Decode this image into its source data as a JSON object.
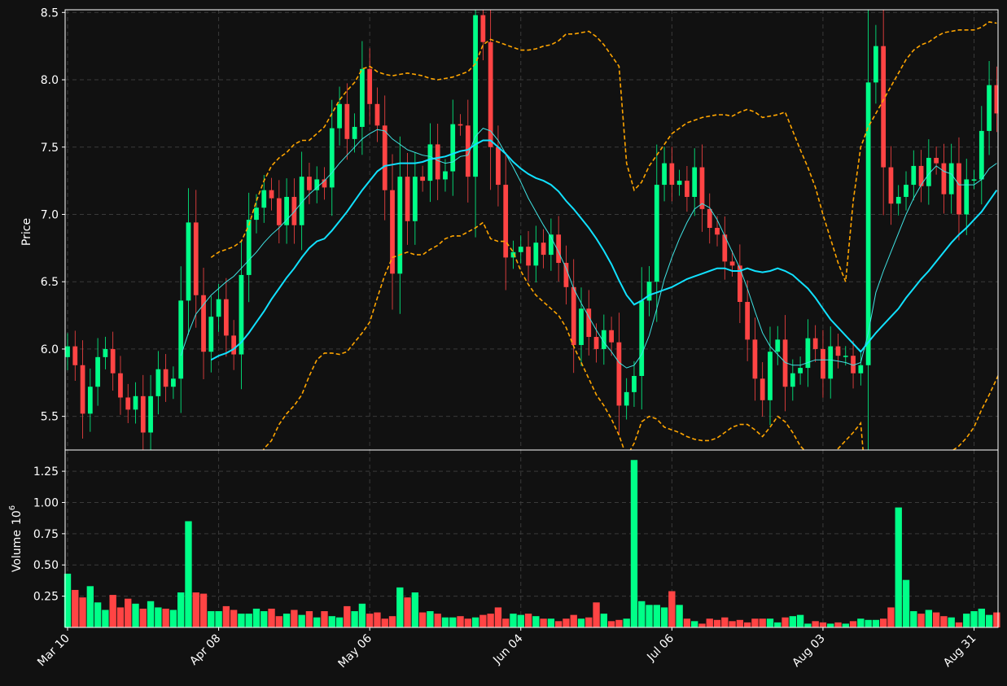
{
  "chart_data": {
    "type": "candlestick",
    "price_panel": {
      "ylabel": "Price",
      "ylim": [
        5.25,
        8.52
      ],
      "yticks": [
        "5.5",
        "6.0",
        "6.5",
        "7.0",
        "7.5",
        "8.0",
        "8.5"
      ],
      "grid": true
    },
    "volume_panel": {
      "ylabel": "Volume",
      "ylabel_exponent": "10",
      "ylabel_exponent_power": "6",
      "ylim": [
        0,
        1.42
      ],
      "yticks": [
        "0.25",
        "0.50",
        "0.75",
        "1.00",
        "1.25"
      ],
      "unit": "millions"
    },
    "x_tick_labels": [
      "Mar 10",
      "Apr 08",
      "May 06",
      "Jun 04",
      "Jul 06",
      "Aug 03",
      "Aug 31"
    ],
    "x_tick_indices": [
      0,
      20,
      40,
      60,
      80,
      100,
      120
    ],
    "colors": {
      "up": "#00ff88",
      "down": "#ff4444",
      "ma_short": "#3fe3e3",
      "ma_long": "#11e1ff",
      "bands": "#ffa500",
      "background": "#111111",
      "grid": "#3a3a3a"
    },
    "series": [
      {
        "name": "",
        "kind": "close",
        "values": [
          6.02,
          5.88,
          5.52,
          5.72,
          5.94,
          6.0,
          5.82,
          5.64,
          5.55,
          5.65,
          5.38,
          5.65,
          5.85,
          5.72,
          5.78,
          6.36,
          6.94,
          6.4,
          5.98,
          6.24,
          6.37,
          6.1,
          5.96,
          6.55,
          6.96,
          7.05,
          7.18,
          7.12,
          6.92,
          7.13,
          6.92,
          7.28,
          7.18,
          7.26,
          7.2,
          7.64,
          7.82,
          7.56,
          7.65,
          8.08,
          7.82,
          7.66,
          7.18,
          6.56,
          7.28,
          6.95,
          7.28,
          7.25,
          7.52,
          7.26,
          7.32,
          7.67,
          7.66,
          7.28,
          8.48,
          8.28,
          7.5,
          7.22,
          6.68,
          6.72,
          6.76,
          6.62,
          6.79,
          6.7,
          6.85,
          6.64,
          6.46,
          6.03,
          6.3,
          6.09,
          6.0,
          6.14,
          6.05,
          5.58,
          5.68,
          5.8,
          6.36,
          6.5,
          7.22,
          7.38,
          7.22,
          7.25,
          7.13,
          7.35,
          7.04,
          6.9,
          6.85,
          6.65,
          6.62,
          6.35,
          6.07,
          5.78,
          5.62,
          5.98,
          6.07,
          5.72,
          5.82,
          5.86,
          6.08,
          6.0,
          5.78,
          6.02,
          5.95,
          5.95,
          5.82,
          5.88,
          7.98,
          8.25,
          7.35,
          7.08,
          7.13,
          7.22,
          7.36,
          7.21,
          7.42,
          7.38,
          7.15,
          7.38,
          7.0,
          7.26,
          7.26,
          7.62,
          7.96,
          7.75
        ]
      },
      {
        "name": "",
        "kind": "ma_short",
        "values": [
          null,
          null,
          null,
          null,
          null,
          null,
          null,
          null,
          null,
          null,
          null,
          null,
          null,
          null,
          null,
          5.95,
          6.12,
          6.26,
          6.33,
          6.4,
          6.45,
          6.5,
          6.54,
          6.6,
          6.66,
          6.72,
          6.79,
          6.85,
          6.9,
          6.96,
          7.02,
          7.09,
          7.15,
          7.2,
          7.25,
          7.31,
          7.38,
          7.44,
          7.5,
          7.56,
          7.6,
          7.63,
          7.62,
          7.56,
          7.52,
          7.48,
          7.46,
          7.44,
          7.43,
          7.4,
          7.38,
          7.39,
          7.43,
          7.44,
          7.58,
          7.64,
          7.62,
          7.55,
          7.45,
          7.35,
          7.24,
          7.12,
          7.02,
          6.92,
          6.83,
          6.72,
          6.6,
          6.45,
          6.34,
          6.24,
          6.14,
          6.05,
          5.98,
          5.9,
          5.86,
          5.88,
          5.96,
          6.1,
          6.3,
          6.52,
          6.68,
          6.82,
          6.94,
          7.04,
          7.08,
          7.05,
          6.96,
          6.84,
          6.72,
          6.6,
          6.45,
          6.28,
          6.12,
          6.02,
          5.96,
          5.9,
          5.88,
          5.88,
          5.9,
          5.92,
          5.92,
          5.92,
          5.91,
          5.9,
          5.88,
          5.9,
          6.12,
          6.42,
          6.58,
          6.72,
          6.86,
          7.0,
          7.12,
          7.22,
          7.3,
          7.36,
          7.32,
          7.3,
          7.22,
          7.22,
          7.22,
          7.26,
          7.34,
          7.38
        ]
      },
      {
        "name": "",
        "kind": "ma_long",
        "values": [
          null,
          null,
          null,
          null,
          null,
          null,
          null,
          null,
          null,
          null,
          null,
          null,
          null,
          null,
          null,
          null,
          null,
          null,
          null,
          5.92,
          5.95,
          5.97,
          6.0,
          6.05,
          6.12,
          6.2,
          6.28,
          6.37,
          6.45,
          6.53,
          6.6,
          6.68,
          6.75,
          6.8,
          6.82,
          6.88,
          6.95,
          7.02,
          7.1,
          7.18,
          7.25,
          7.32,
          7.36,
          7.37,
          7.38,
          7.38,
          7.38,
          7.39,
          7.41,
          7.42,
          7.43,
          7.45,
          7.47,
          7.48,
          7.52,
          7.55,
          7.55,
          7.5,
          7.45,
          7.39,
          7.34,
          7.3,
          7.27,
          7.25,
          7.22,
          7.17,
          7.1,
          7.04,
          6.97,
          6.9,
          6.82,
          6.73,
          6.63,
          6.51,
          6.4,
          6.33,
          6.36,
          6.4,
          6.42,
          6.44,
          6.46,
          6.49,
          6.52,
          6.54,
          6.56,
          6.58,
          6.6,
          6.6,
          6.58,
          6.58,
          6.6,
          6.58,
          6.57,
          6.58,
          6.6,
          6.58,
          6.55,
          6.5,
          6.45,
          6.38,
          6.3,
          6.22,
          6.16,
          6.1,
          6.04,
          5.98,
          6.05,
          6.12,
          6.18,
          6.24,
          6.3,
          6.38,
          6.45,
          6.52,
          6.58,
          6.65,
          6.72,
          6.79,
          6.85,
          6.9,
          6.96,
          7.02,
          7.1,
          7.18
        ]
      },
      {
        "name": "",
        "kind": "upper_band",
        "values": [
          null,
          null,
          null,
          null,
          null,
          null,
          null,
          null,
          null,
          null,
          null,
          null,
          null,
          null,
          null,
          null,
          null,
          null,
          null,
          6.68,
          6.72,
          6.74,
          6.76,
          6.8,
          6.92,
          7.1,
          7.25,
          7.36,
          7.42,
          7.46,
          7.52,
          7.55,
          7.55,
          7.6,
          7.65,
          7.75,
          7.85,
          7.92,
          7.98,
          8.08,
          8.1,
          8.06,
          8.04,
          8.03,
          8.04,
          8.05,
          8.04,
          8.03,
          8.01,
          8.0,
          8.01,
          8.02,
          8.04,
          8.06,
          8.12,
          8.26,
          8.3,
          8.28,
          8.26,
          8.24,
          8.22,
          8.22,
          8.23,
          8.25,
          8.26,
          8.29,
          8.34,
          8.34,
          8.35,
          8.36,
          8.32,
          8.26,
          8.18,
          8.1,
          7.38,
          7.18,
          7.24,
          7.36,
          7.44,
          7.52,
          7.6,
          7.64,
          7.68,
          7.7,
          7.72,
          7.73,
          7.74,
          7.74,
          7.73,
          7.76,
          7.78,
          7.76,
          7.72,
          7.73,
          7.74,
          7.76,
          7.62,
          7.48,
          7.35,
          7.2,
          7.0,
          6.82,
          6.64,
          6.5,
          7.1,
          7.5,
          7.65,
          7.75,
          7.85,
          7.95,
          8.05,
          8.15,
          8.22,
          8.26,
          8.28,
          8.32,
          8.35,
          8.36,
          8.37,
          8.37,
          8.37,
          8.39,
          8.43,
          8.42
        ]
      },
      {
        "name": "",
        "kind": "lower_band",
        "values": [
          null,
          null,
          null,
          null,
          null,
          null,
          null,
          null,
          null,
          null,
          null,
          null,
          null,
          null,
          null,
          null,
          null,
          null,
          null,
          5.0,
          4.95,
          4.92,
          4.9,
          4.9,
          4.95,
          5.1,
          5.26,
          5.32,
          5.44,
          5.52,
          5.58,
          5.66,
          5.8,
          5.92,
          5.97,
          5.97,
          5.96,
          5.98,
          6.05,
          6.12,
          6.2,
          6.38,
          6.55,
          6.68,
          6.7,
          6.72,
          6.7,
          6.7,
          6.74,
          6.77,
          6.82,
          6.84,
          6.84,
          6.87,
          6.9,
          6.94,
          6.82,
          6.8,
          6.8,
          6.72,
          6.58,
          6.48,
          6.4,
          6.35,
          6.3,
          6.25,
          6.16,
          6.02,
          5.9,
          5.78,
          5.66,
          5.58,
          5.48,
          5.36,
          5.2,
          5.3,
          5.46,
          5.5,
          5.48,
          5.42,
          5.4,
          5.38,
          5.35,
          5.33,
          5.32,
          5.32,
          5.34,
          5.38,
          5.42,
          5.44,
          5.44,
          5.4,
          5.35,
          5.42,
          5.5,
          5.46,
          5.38,
          5.28,
          5.22,
          5.18,
          5.18,
          5.2,
          5.26,
          5.32,
          5.38,
          5.45,
          4.8,
          4.6,
          4.6,
          4.7,
          4.8,
          4.9,
          5.0,
          5.1,
          5.15,
          5.2,
          5.22,
          5.24,
          5.28,
          5.34,
          5.42,
          5.55,
          5.66,
          5.78,
          5.9,
          6.08
        ]
      },
      {
        "name": "",
        "kind": "volume",
        "values": [
          0.43,
          0.3,
          0.24,
          0.33,
          0.2,
          0.14,
          0.26,
          0.16,
          0.23,
          0.19,
          0.15,
          0.21,
          0.16,
          0.15,
          0.14,
          0.28,
          0.85,
          0.28,
          0.27,
          0.13,
          0.13,
          0.17,
          0.14,
          0.11,
          0.11,
          0.15,
          0.13,
          0.15,
          0.09,
          0.11,
          0.14,
          0.1,
          0.13,
          0.08,
          0.13,
          0.09,
          0.08,
          0.17,
          0.13,
          0.19,
          0.11,
          0.12,
          0.07,
          0.09,
          0.32,
          0.24,
          0.28,
          0.12,
          0.13,
          0.11,
          0.08,
          0.08,
          0.09,
          0.07,
          0.08,
          0.1,
          0.11,
          0.16,
          0.07,
          0.11,
          0.1,
          0.11,
          0.09,
          0.07,
          0.07,
          0.05,
          0.07,
          0.1,
          0.07,
          0.08,
          0.2,
          0.11,
          0.05,
          0.06,
          0.07,
          1.34,
          0.21,
          0.18,
          0.18,
          0.16,
          0.29,
          0.18,
          0.07,
          0.05,
          0.03,
          0.07,
          0.06,
          0.08,
          0.05,
          0.06,
          0.04,
          0.07,
          0.07,
          0.07,
          0.04,
          0.08,
          0.09,
          0.1,
          0.03,
          0.05,
          0.04,
          0.03,
          0.04,
          0.03,
          0.05,
          0.07,
          0.06,
          0.06,
          0.07,
          0.16,
          0.96,
          0.38,
          0.13,
          0.11,
          0.14,
          0.12,
          0.09,
          0.08,
          0.04,
          0.11,
          0.13,
          0.15,
          0.1,
          0.12,
          0.05,
          0.13,
          0.25,
          0.16
        ]
      }
    ]
  }
}
